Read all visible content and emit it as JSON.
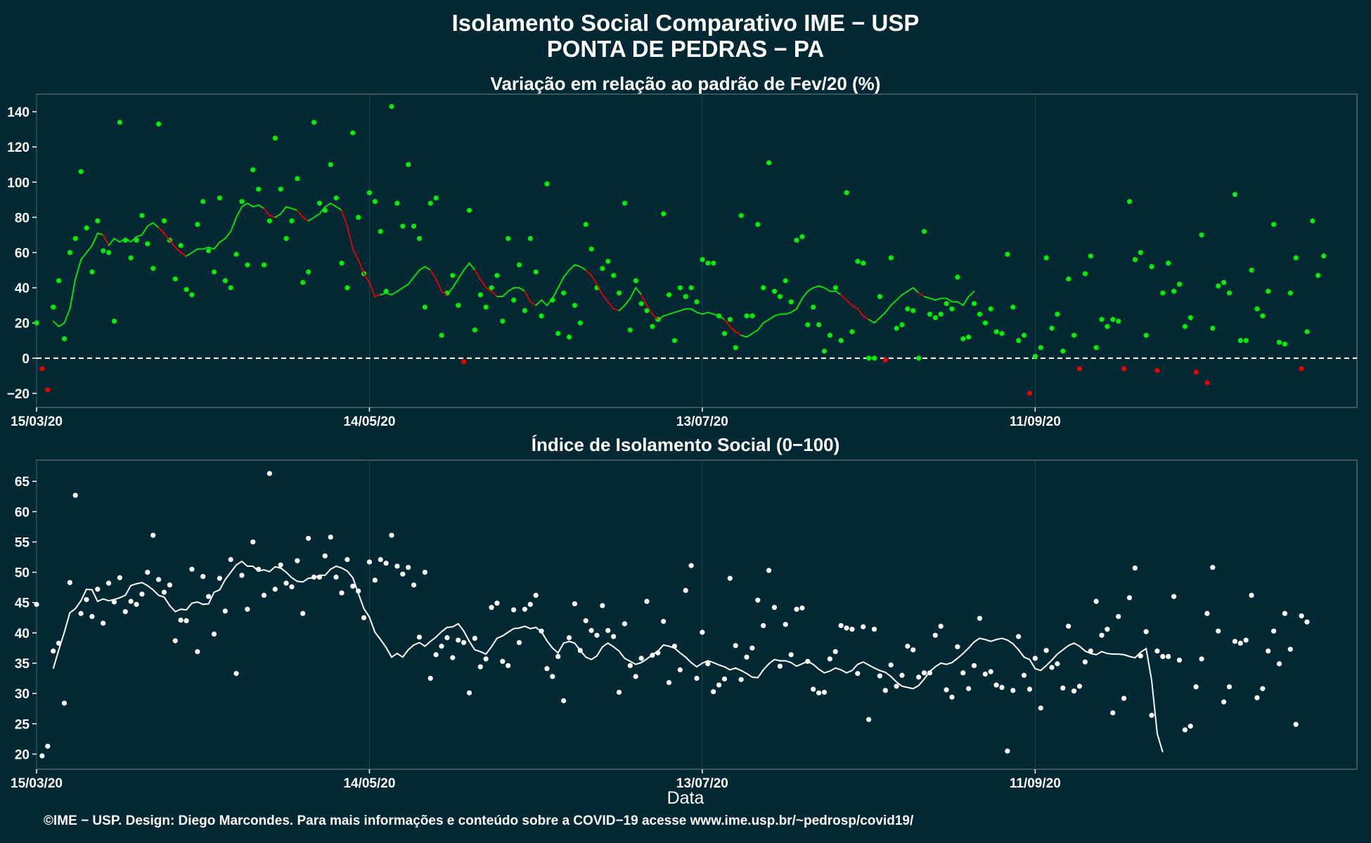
{
  "title_line1": "Isolamento Social Comparativo IME − USP",
  "title_line2": "PONTA DE PEDRAS − PA",
  "x_label": "Data",
  "footer": "©IME − USP. Design: Diego Marcondes. Para mais informações e conteúdo sobre a COVID−19 acesse www.ime.usp.br/~pedrosp/covid19/",
  "colors": {
    "background": "#022833",
    "positive": "#00ee00",
    "negative": "#ee0000",
    "index": "#ffffff"
  },
  "chart_data": [
    {
      "type": "scatter",
      "title": "Variação em relação ao padrão de Fev/20 (%)",
      "x_tick_labels": [
        "15/03/20",
        "14/05/20",
        "13/07/20",
        "11/09/20"
      ],
      "x_range": [
        "2020-03-15",
        "2020-11-08"
      ],
      "y_ticks": [
        -20,
        0,
        20,
        40,
        60,
        80,
        100,
        120,
        140
      ],
      "ylim": [
        -28,
        150
      ],
      "reference_line": 0,
      "grid": true,
      "series": [
        {
          "kind": "points",
          "x_start": "2020-03-15",
          "values": [
            20,
            -6,
            -18,
            29,
            44,
            11,
            60,
            68,
            106,
            74,
            49,
            78,
            61,
            60,
            21,
            134,
            67,
            57,
            67,
            81,
            65,
            51,
            133,
            78,
            67,
            45,
            64,
            39,
            36,
            76,
            89,
            61,
            49,
            91,
            44,
            40,
            59,
            89,
            53,
            107,
            96,
            53,
            78,
            125,
            96,
            68,
            78,
            102,
            43,
            49,
            134,
            88,
            84,
            110,
            91,
            54,
            40,
            128,
            80,
            48,
            94,
            89,
            72,
            38,
            143,
            88,
            75,
            110,
            75,
            68,
            29,
            88,
            91,
            13,
            37,
            47,
            30,
            -2,
            84,
            16,
            36,
            29,
            40,
            47,
            21,
            68,
            33,
            53,
            27,
            68,
            49,
            24,
            99,
            33,
            14,
            37,
            12,
            30,
            20,
            76,
            62,
            40,
            51,
            55,
            47,
            37,
            88,
            16,
            44,
            31,
            27,
            18,
            22,
            82,
            36,
            10,
            40,
            35,
            40,
            32,
            56,
            54,
            54,
            24,
            14,
            22,
            6,
            81,
            24,
            24,
            76,
            40,
            111,
            38,
            35,
            44,
            32,
            67,
            69,
            19,
            29,
            19,
            4,
            13,
            40,
            10,
            94,
            15,
            55,
            54,
            0,
            0,
            35,
            -1,
            57,
            17,
            19,
            28,
            27,
            0,
            72,
            25,
            23,
            25,
            31,
            28,
            46,
            11,
            12,
            31,
            25,
            20,
            28,
            15,
            14,
            59,
            29,
            10,
            13,
            -20,
            1,
            6,
            57,
            17,
            25,
            4,
            45,
            13,
            -6,
            48,
            58,
            6,
            22,
            18,
            22,
            21,
            -6,
            89,
            56,
            60,
            13,
            52,
            -7,
            37,
            54,
            38,
            42,
            18,
            23,
            -8,
            70,
            -14,
            17,
            41,
            43,
            37,
            93,
            10,
            10,
            50,
            28,
            24,
            38,
            76,
            9,
            8,
            37,
            57,
            -6,
            15,
            78,
            47,
            58
          ]
        },
        {
          "kind": "moving_average_line",
          "x_start": "2020-03-18",
          "values": [
            21,
            18,
            20,
            28,
            45,
            56,
            60,
            64,
            71,
            70,
            64,
            68,
            66,
            68,
            66,
            69,
            70,
            75,
            77,
            74,
            71,
            67,
            63,
            60,
            58,
            60,
            62,
            62,
            63,
            62,
            66,
            68,
            72,
            80,
            86,
            88,
            86,
            87,
            85,
            81,
            80,
            82,
            86,
            85,
            84,
            80,
            78,
            80,
            82,
            86,
            88,
            86,
            84,
            75,
            62,
            56,
            48,
            43,
            35,
            36,
            37,
            36,
            38,
            40,
            42,
            46,
            50,
            52,
            50,
            45,
            38,
            36,
            40,
            45,
            50,
            54,
            50,
            45,
            40,
            38,
            35,
            35,
            38,
            40,
            40,
            38,
            32,
            30,
            33,
            30,
            34,
            40,
            46,
            50,
            53,
            52,
            50,
            47,
            42,
            36,
            32,
            28,
            27,
            30,
            34,
            40,
            36,
            30,
            25,
            22,
            24,
            25,
            26,
            27,
            28,
            28,
            26,
            25,
            26,
            25,
            24,
            22,
            18,
            15,
            13,
            12,
            14,
            16,
            20,
            22,
            24,
            25,
            25,
            26,
            28,
            34,
            38,
            40,
            41,
            40,
            38,
            38,
            36,
            33,
            30,
            28,
            24,
            22,
            20,
            23,
            26,
            30,
            33,
            36,
            38,
            40,
            37,
            35,
            34,
            33,
            34,
            34,
            32,
            32,
            30,
            35,
            38
          ]
        }
      ]
    },
    {
      "type": "scatter",
      "title": "Índice de Isolamento Social (0−100)",
      "x_tick_labels": [
        "15/03/20",
        "14/05/20",
        "13/07/20",
        "11/09/20"
      ],
      "x_range": [
        "2020-03-15",
        "2020-11-08"
      ],
      "y_ticks": [
        20,
        25,
        30,
        35,
        40,
        45,
        50,
        55,
        60,
        65
      ],
      "ylim": [
        17.5,
        68.5
      ],
      "grid": true,
      "series": [
        {
          "kind": "points",
          "x_start": "2020-03-15",
          "values": [
            44.7,
            19.7,
            21.3,
            37.0,
            38.3,
            28.4,
            48.3,
            62.7,
            43.2,
            45.5,
            42.7,
            47.2,
            41.6,
            48.2,
            45.1,
            49.1,
            43.5,
            45.2,
            44.7,
            46.4,
            50.0,
            56.1,
            48.8,
            46.7,
            47.9,
            38.7,
            42.1,
            42.0,
            50.5,
            36.9,
            49.3,
            46.0,
            39.8,
            49.0,
            43.6,
            52.1,
            33.3,
            49.5,
            43.9,
            55.0,
            50.5,
            46.2,
            66.3,
            47.2,
            51.2,
            48.2,
            47.6,
            51.9,
            43.2,
            55.6,
            49.2,
            49.2,
            52.7,
            55.8,
            49.2,
            46.6,
            52.1,
            47.7,
            46.9,
            42.5,
            51.7,
            48.7,
            52.1,
            51.5,
            56.1,
            51.0,
            49.7,
            50.8,
            47.9,
            39.3,
            50.0,
            32.5,
            36.4,
            37.8,
            39.2,
            35.9,
            38.8,
            38.4,
            30.1,
            39.1,
            34.4,
            35.7,
            44.2,
            44.9,
            35.3,
            34.6,
            43.8,
            38.4,
            43.9,
            44.7,
            46.2,
            40.3,
            34.1,
            32.8,
            36.1,
            28.8,
            39.2,
            44.8,
            37.1,
            42.0,
            40.4,
            39.6,
            44.5,
            40.4,
            39.4,
            30.2,
            41.5,
            34.6,
            32.8,
            35.8,
            45.2,
            36.3,
            36.7,
            41.9,
            31.8,
            37.8,
            33.9,
            47.0,
            51.1,
            32.5,
            40.1,
            34.9,
            30.3,
            31.4,
            32.4,
            49.0,
            37.9,
            32.3,
            36.0,
            37.5,
            45.4,
            41.2,
            50.3,
            44.2,
            34.5,
            41.4,
            36.4,
            43.9,
            44.1,
            35.3,
            30.7,
            30.1,
            30.2,
            35.7,
            36.9,
            41.2,
            40.8,
            40.6,
            33.3,
            41.0,
            25.7,
            40.6,
            32.9,
            30.5,
            34.7,
            31.2,
            33.0,
            37.8,
            37.2,
            32.7,
            33.4,
            33.4,
            39.6,
            41.1,
            30.6,
            29.4,
            37.7,
            33.4,
            30.8,
            34.6,
            42.4,
            33.2,
            33.6,
            31.4,
            31.0,
            20.5,
            30.5,
            39.4,
            33.0,
            30.7,
            35.8,
            27.6,
            37.1,
            34.3,
            34.9,
            30.9,
            41.1,
            30.4,
            31.2,
            35.2,
            37.0,
            45.2,
            39.6,
            40.6,
            26.8,
            42.7,
            29.2,
            45.8,
            50.7,
            36.2,
            40.2,
            26.4,
            37.0,
            36.1,
            36.1,
            46.0,
            35.5,
            24.0,
            24.6,
            31.1,
            35.7,
            43.2,
            50.8,
            40.3,
            28.6,
            31.1,
            38.6,
            38.3,
            38.8,
            46.2,
            29.3,
            30.8,
            37.0,
            40.3,
            34.9,
            43.2,
            37.3,
            24.9,
            42.8,
            41.8
          ]
        },
        {
          "kind": "moving_average_line",
          "x_start": "2020-03-18",
          "values": [
            34.1,
            37.2,
            40.1,
            43.3,
            44.0,
            45.3,
            47.2,
            47.1,
            45.2,
            45.6,
            45.3,
            45.5,
            45.8,
            46.2,
            47.8,
            48.1,
            48.3,
            47.8,
            47.1,
            46.2,
            45.9,
            44.5,
            43.5,
            43.9,
            43.8,
            44.9,
            45.1,
            44.7,
            44.8,
            46.7,
            47.1,
            48.8,
            50.0,
            51.2,
            51.8,
            51.0,
            51.0,
            50.2,
            50.4,
            50.1,
            50.9,
            50.7,
            50.0,
            49.1,
            48.5,
            48.4,
            49.0,
            49.1,
            49.5,
            49.5,
            50.5,
            51.0,
            50.7,
            50.2,
            49.1,
            46.5,
            44.0,
            42.6,
            40.1,
            38.9,
            37.6,
            36.0,
            36.6,
            36.0,
            37.2,
            38.0,
            38.4,
            37.8,
            38.6,
            39.3,
            40.2,
            40.9,
            41.0,
            41.5,
            40.3,
            38.6,
            37.2,
            36.9,
            36.5,
            37.7,
            39.1,
            39.5,
            40.1,
            40.7,
            40.8,
            41.1,
            40.7,
            40.9,
            40.2,
            38.7,
            37.5,
            36.7,
            38.3,
            38.6,
            38.3,
            37.1,
            36.0,
            35.6,
            36.2,
            37.7,
            38.3,
            37.7,
            37.0,
            35.8,
            35.3,
            34.8,
            35.1,
            35.7,
            36.4,
            37.0,
            38.0,
            37.8,
            37.5,
            36.7,
            36.0,
            35.1,
            34.4,
            35.0,
            35.4,
            35.1,
            34.7,
            34.4,
            33.9,
            34.2,
            33.8,
            33.3,
            32.7,
            32.6,
            33.9,
            34.9,
            35.6,
            35.4,
            35.4,
            35.1,
            34.5,
            34.9,
            35.3,
            34.8,
            34.0,
            33.4,
            33.7,
            34.2,
            33.9,
            33.4,
            33.8,
            34.8,
            35.2,
            34.7,
            34.2,
            33.8,
            33.5,
            32.8,
            31.9,
            31.2,
            31.0,
            30.8,
            31.3,
            32.4,
            33.6,
            34.4,
            35.0,
            34.8,
            35.1,
            35.8,
            36.6,
            37.5,
            38.5,
            39.1,
            38.9,
            38.6,
            38.9,
            39.1,
            38.8,
            38.2,
            37.2,
            36.0,
            35.6,
            34.1,
            33.8,
            34.6,
            35.5,
            36.5,
            37.2,
            37.9,
            38.3,
            37.8,
            37.0,
            36.6,
            36.4,
            36.9,
            36.6,
            36.5,
            36.5,
            36.4,
            36.1,
            35.9,
            36.8,
            37.4,
            32.2,
            23.4,
            20.3
          ]
        }
      ]
    }
  ]
}
